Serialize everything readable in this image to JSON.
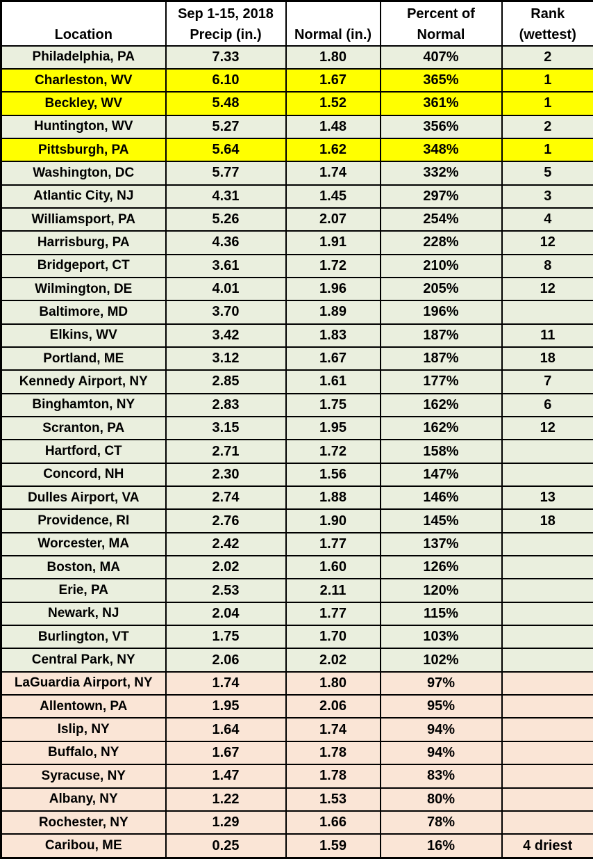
{
  "colors": {
    "above_normal_green": "#EAEFDE",
    "rank1_yellow": "#FFFF00",
    "below_normal_peach": "#FAE5D6",
    "border_black": "#000000",
    "header_white": "#FFFFFF",
    "text_black": "#000000"
  },
  "table": {
    "header": {
      "location": "Location",
      "precip": [
        "Sep 1-15, 2018",
        "Precip (in.)"
      ],
      "normal": "Normal (in.)",
      "percent": [
        "Percent of",
        "Normal"
      ],
      "rank": [
        "Rank",
        "(wettest)"
      ]
    },
    "rows": [
      {
        "location": "Philadelphia, PA",
        "precip": "7.33",
        "normal": "1.80",
        "percent": "407%",
        "rank": "2",
        "bg": "green"
      },
      {
        "location": "Charleston, WV",
        "precip": "6.10",
        "normal": "1.67",
        "percent": "365%",
        "rank": "1",
        "bg": "yellow"
      },
      {
        "location": "Beckley, WV",
        "precip": "5.48",
        "normal": "1.52",
        "percent": "361%",
        "rank": "1",
        "bg": "yellow"
      },
      {
        "location": "Huntington, WV",
        "precip": "5.27",
        "normal": "1.48",
        "percent": "356%",
        "rank": "2",
        "bg": "green"
      },
      {
        "location": "Pittsburgh, PA",
        "precip": "5.64",
        "normal": "1.62",
        "percent": "348%",
        "rank": "1",
        "bg": "yellow"
      },
      {
        "location": "Washington, DC",
        "precip": "5.77",
        "normal": "1.74",
        "percent": "332%",
        "rank": "5",
        "bg": "green"
      },
      {
        "location": "Atlantic City, NJ",
        "precip": "4.31",
        "normal": "1.45",
        "percent": "297%",
        "rank": "3",
        "bg": "green"
      },
      {
        "location": "Williamsport, PA",
        "precip": "5.26",
        "normal": "2.07",
        "percent": "254%",
        "rank": "4",
        "bg": "green"
      },
      {
        "location": "Harrisburg, PA",
        "precip": "4.36",
        "normal": "1.91",
        "percent": "228%",
        "rank": "12",
        "bg": "green"
      },
      {
        "location": "Bridgeport, CT",
        "precip": "3.61",
        "normal": "1.72",
        "percent": "210%",
        "rank": "8",
        "bg": "green"
      },
      {
        "location": "Wilmington, DE",
        "precip": "4.01",
        "normal": "1.96",
        "percent": "205%",
        "rank": "12",
        "bg": "green"
      },
      {
        "location": "Baltimore, MD",
        "precip": "3.70",
        "normal": "1.89",
        "percent": "196%",
        "rank": "",
        "bg": "green"
      },
      {
        "location": "Elkins, WV",
        "precip": "3.42",
        "normal": "1.83",
        "percent": "187%",
        "rank": "11",
        "bg": "green"
      },
      {
        "location": "Portland, ME",
        "precip": "3.12",
        "normal": "1.67",
        "percent": "187%",
        "rank": "18",
        "bg": "green"
      },
      {
        "location": "Kennedy Airport, NY",
        "precip": "2.85",
        "normal": "1.61",
        "percent": "177%",
        "rank": "7",
        "bg": "green"
      },
      {
        "location": "Binghamton, NY",
        "precip": "2.83",
        "normal": "1.75",
        "percent": "162%",
        "rank": "6",
        "bg": "green"
      },
      {
        "location": "Scranton, PA",
        "precip": "3.15",
        "normal": "1.95",
        "percent": "162%",
        "rank": "12",
        "bg": "green"
      },
      {
        "location": "Hartford, CT",
        "precip": "2.71",
        "normal": "1.72",
        "percent": "158%",
        "rank": "",
        "bg": "green"
      },
      {
        "location": "Concord, NH",
        "precip": "2.30",
        "normal": "1.56",
        "percent": "147%",
        "rank": "",
        "bg": "green"
      },
      {
        "location": "Dulles Airport, VA",
        "precip": "2.74",
        "normal": "1.88",
        "percent": "146%",
        "rank": "13",
        "bg": "green"
      },
      {
        "location": "Providence, RI",
        "precip": "2.76",
        "normal": "1.90",
        "percent": "145%",
        "rank": "18",
        "bg": "green"
      },
      {
        "location": "Worcester, MA",
        "precip": "2.42",
        "normal": "1.77",
        "percent": "137%",
        "rank": "",
        "bg": "green"
      },
      {
        "location": "Boston, MA",
        "precip": "2.02",
        "normal": "1.60",
        "percent": "126%",
        "rank": "",
        "bg": "green"
      },
      {
        "location": "Erie, PA",
        "precip": "2.53",
        "normal": "2.11",
        "percent": "120%",
        "rank": "",
        "bg": "green"
      },
      {
        "location": "Newark, NJ",
        "precip": "2.04",
        "normal": "1.77",
        "percent": "115%",
        "rank": "",
        "bg": "green"
      },
      {
        "location": "Burlington, VT",
        "precip": "1.75",
        "normal": "1.70",
        "percent": "103%",
        "rank": "",
        "bg": "green"
      },
      {
        "location": "Central Park, NY",
        "precip": "2.06",
        "normal": "2.02",
        "percent": "102%",
        "rank": "",
        "bg": "green"
      },
      {
        "location": "LaGuardia Airport, NY",
        "precip": "1.74",
        "normal": "1.80",
        "percent": "97%",
        "rank": "",
        "bg": "peach"
      },
      {
        "location": "Allentown, PA",
        "precip": "1.95",
        "normal": "2.06",
        "percent": "95%",
        "rank": "",
        "bg": "peach"
      },
      {
        "location": "Islip, NY",
        "precip": "1.64",
        "normal": "1.74",
        "percent": "94%",
        "rank": "",
        "bg": "peach"
      },
      {
        "location": "Buffalo, NY",
        "precip": "1.67",
        "normal": "1.78",
        "percent": "94%",
        "rank": "",
        "bg": "peach"
      },
      {
        "location": "Syracuse, NY",
        "precip": "1.47",
        "normal": "1.78",
        "percent": "83%",
        "rank": "",
        "bg": "peach"
      },
      {
        "location": "Albany, NY",
        "precip": "1.22",
        "normal": "1.53",
        "percent": "80%",
        "rank": "",
        "bg": "peach"
      },
      {
        "location": "Rochester, NY",
        "precip": "1.29",
        "normal": "1.66",
        "percent": "78%",
        "rank": "",
        "bg": "peach"
      },
      {
        "location": "Caribou, ME",
        "precip": "0.25",
        "normal": "1.59",
        "percent": "16%",
        "rank": "4 driest",
        "bg": "peach"
      }
    ]
  },
  "chart_data": {
    "type": "table",
    "title": "Sep 1-15, 2018 Precipitation vs Normal",
    "columns": [
      "Location",
      "Sep 1-15, 2018 Precip (in.)",
      "Normal (in.)",
      "Percent of Normal",
      "Rank (wettest)"
    ],
    "rows": [
      [
        "Philadelphia, PA",
        7.33,
        1.8,
        "407%",
        "2"
      ],
      [
        "Charleston, WV",
        6.1,
        1.67,
        "365%",
        "1"
      ],
      [
        "Beckley, WV",
        5.48,
        1.52,
        "361%",
        "1"
      ],
      [
        "Huntington, WV",
        5.27,
        1.48,
        "356%",
        "2"
      ],
      [
        "Pittsburgh, PA",
        5.64,
        1.62,
        "348%",
        "1"
      ],
      [
        "Washington, DC",
        5.77,
        1.74,
        "332%",
        "5"
      ],
      [
        "Atlantic City, NJ",
        4.31,
        1.45,
        "297%",
        "3"
      ],
      [
        "Williamsport, PA",
        5.26,
        2.07,
        "254%",
        "4"
      ],
      [
        "Harrisburg, PA",
        4.36,
        1.91,
        "228%",
        "12"
      ],
      [
        "Bridgeport, CT",
        3.61,
        1.72,
        "210%",
        "8"
      ],
      [
        "Wilmington, DE",
        4.01,
        1.96,
        "205%",
        "12"
      ],
      [
        "Baltimore, MD",
        3.7,
        1.89,
        "196%",
        ""
      ],
      [
        "Elkins, WV",
        3.42,
        1.83,
        "187%",
        "11"
      ],
      [
        "Portland, ME",
        3.12,
        1.67,
        "187%",
        "18"
      ],
      [
        "Kennedy Airport, NY",
        2.85,
        1.61,
        "177%",
        "7"
      ],
      [
        "Binghamton, NY",
        2.83,
        1.75,
        "162%",
        "6"
      ],
      [
        "Scranton, PA",
        3.15,
        1.95,
        "162%",
        "12"
      ],
      [
        "Hartford, CT",
        2.71,
        1.72,
        "158%",
        ""
      ],
      [
        "Concord, NH",
        2.3,
        1.56,
        "147%",
        ""
      ],
      [
        "Dulles Airport, VA",
        2.74,
        1.88,
        "146%",
        "13"
      ],
      [
        "Providence, RI",
        2.76,
        1.9,
        "145%",
        "18"
      ],
      [
        "Worcester, MA",
        2.42,
        1.77,
        "137%",
        ""
      ],
      [
        "Boston, MA",
        2.02,
        1.6,
        "126%",
        ""
      ],
      [
        "Erie, PA",
        2.53,
        2.11,
        "120%",
        ""
      ],
      [
        "Newark, NJ",
        2.04,
        1.77,
        "115%",
        ""
      ],
      [
        "Burlington, VT",
        1.75,
        1.7,
        "103%",
        ""
      ],
      [
        "Central Park, NY",
        2.06,
        2.02,
        "102%",
        ""
      ],
      [
        "LaGuardia Airport, NY",
        1.74,
        1.8,
        "97%",
        ""
      ],
      [
        "Allentown, PA",
        1.95,
        2.06,
        "95%",
        ""
      ],
      [
        "Islip, NY",
        1.64,
        1.74,
        "94%",
        ""
      ],
      [
        "Buffalo, NY",
        1.67,
        1.78,
        "94%",
        ""
      ],
      [
        "Syracuse, NY",
        1.47,
        1.78,
        "83%",
        ""
      ],
      [
        "Albany, NY",
        1.22,
        1.53,
        "80%",
        ""
      ],
      [
        "Rochester, NY",
        1.29,
        1.66,
        "78%",
        ""
      ],
      [
        "Caribou, ME",
        0.25,
        1.59,
        "16%",
        "4 driest"
      ]
    ],
    "row_highlights": {
      "yellow_rank1_wettest": [
        "Charleston, WV",
        "Beckley, WV",
        "Pittsburgh, PA"
      ],
      "green_above_normal": "rows with Percent of Normal >= 102%",
      "peach_below_normal": "rows with Percent of Normal <= 97%"
    },
    "legend_position": "none",
    "grid": true
  }
}
